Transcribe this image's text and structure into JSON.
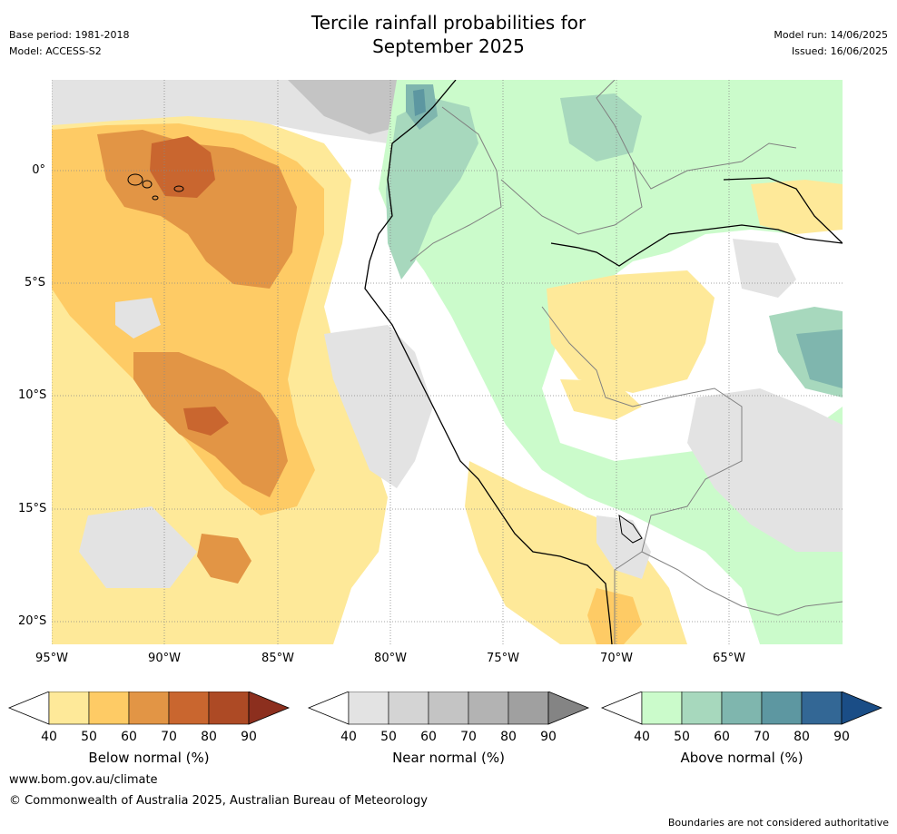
{
  "header": {
    "title_line1": "Tercile rainfall probabilities for",
    "title_line2": "September 2025",
    "base_period": "Base period: 1981-2018",
    "model": "Model: ACCESS-S2",
    "model_run": "Model run: 14/06/2025",
    "issued": "Issued: 16/06/2025"
  },
  "map": {
    "lat_ticks": [
      "0°",
      "5°S",
      "10°S",
      "15°S",
      "20°S"
    ],
    "lon_ticks": [
      "95°W",
      "90°W",
      "85°W",
      "80°W",
      "75°W",
      "70°W",
      "65°W"
    ],
    "colors": {
      "ocean_below": "#fee999",
      "below_50": "#fecb65",
      "below_60": "#e29545",
      "below_70": "#c9662f",
      "near_40": "#e3e3e3",
      "near_50": "#d4d4d4",
      "near_60": "#c4c4c4",
      "above_40": "#cbfbcb",
      "above_50": "#a7d8bd",
      "above_60": "#7fb6ae",
      "above_70": "#5d97a1"
    }
  },
  "colorbars": [
    {
      "label": "Below normal (%)",
      "ticks": [
        "40",
        "50",
        "60",
        "70",
        "80",
        "90"
      ],
      "colors": [
        "#fee999",
        "#fecb65",
        "#e29545",
        "#c9662f",
        "#ad4a25",
        "#8c2f1e"
      ]
    },
    {
      "label": "Near normal (%)",
      "ticks": [
        "40",
        "50",
        "60",
        "70",
        "80",
        "90"
      ],
      "colors": [
        "#e3e3e3",
        "#d4d4d4",
        "#c4c4c4",
        "#b3b3b3",
        "#a0a0a0",
        "#848484"
      ]
    },
    {
      "label": "Above normal (%)",
      "ticks": [
        "40",
        "50",
        "60",
        "70",
        "80",
        "90"
      ],
      "colors": [
        "#cbfbcb",
        "#a7d8bd",
        "#7fb6ae",
        "#5d97a1",
        "#336795",
        "#1a4d86"
      ]
    }
  ],
  "footer": {
    "website": "www.bom.gov.au/climate",
    "copyright": "© Commonwealth of Australia 2025, Australian Bureau of Meteorology",
    "disclaimer": "Boundaries are not considered authoritative"
  }
}
